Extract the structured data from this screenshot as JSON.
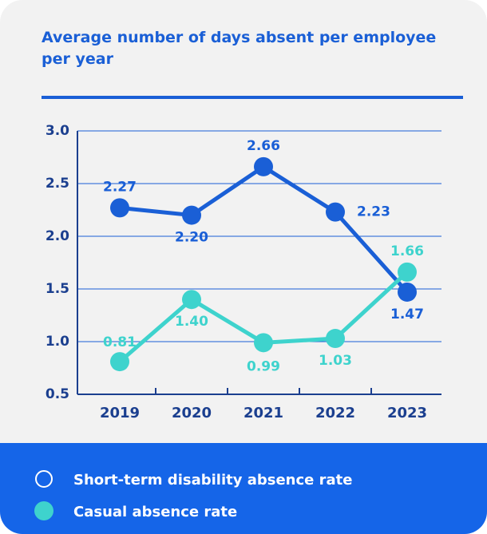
{
  "chart_data": {
    "type": "line",
    "title": "Average number of days absent per employee per year",
    "categories": [
      "2019",
      "2020",
      "2021",
      "2022",
      "2023"
    ],
    "series": [
      {
        "name": "Short-term disability absence rate",
        "color": "#1a5fd6",
        "values": [
          2.27,
          2.2,
          2.66,
          2.23,
          1.47
        ],
        "value_labels": [
          "2.27",
          "2.20",
          "2.66",
          "2.23",
          "1.47"
        ]
      },
      {
        "name": "Casual absence rate",
        "color": "#3ed3cd",
        "values": [
          0.81,
          1.4,
          0.99,
          1.03,
          1.66
        ],
        "value_labels": [
          "0.81",
          "1.40",
          "0.99",
          "1.03",
          "1.66"
        ]
      }
    ],
    "ylim": [
      0.5,
      3.0
    ],
    "yticks": [
      {
        "value": 0.5,
        "label": "0.5"
      },
      {
        "value": 1.0,
        "label": "1.0"
      },
      {
        "value": 1.5,
        "label": "1.5"
      },
      {
        "value": 2.0,
        "label": "2.0"
      },
      {
        "value": 2.5,
        "label": "2.5"
      },
      {
        "value": 3.0,
        "label": "3.0"
      }
    ],
    "grid": true
  }
}
